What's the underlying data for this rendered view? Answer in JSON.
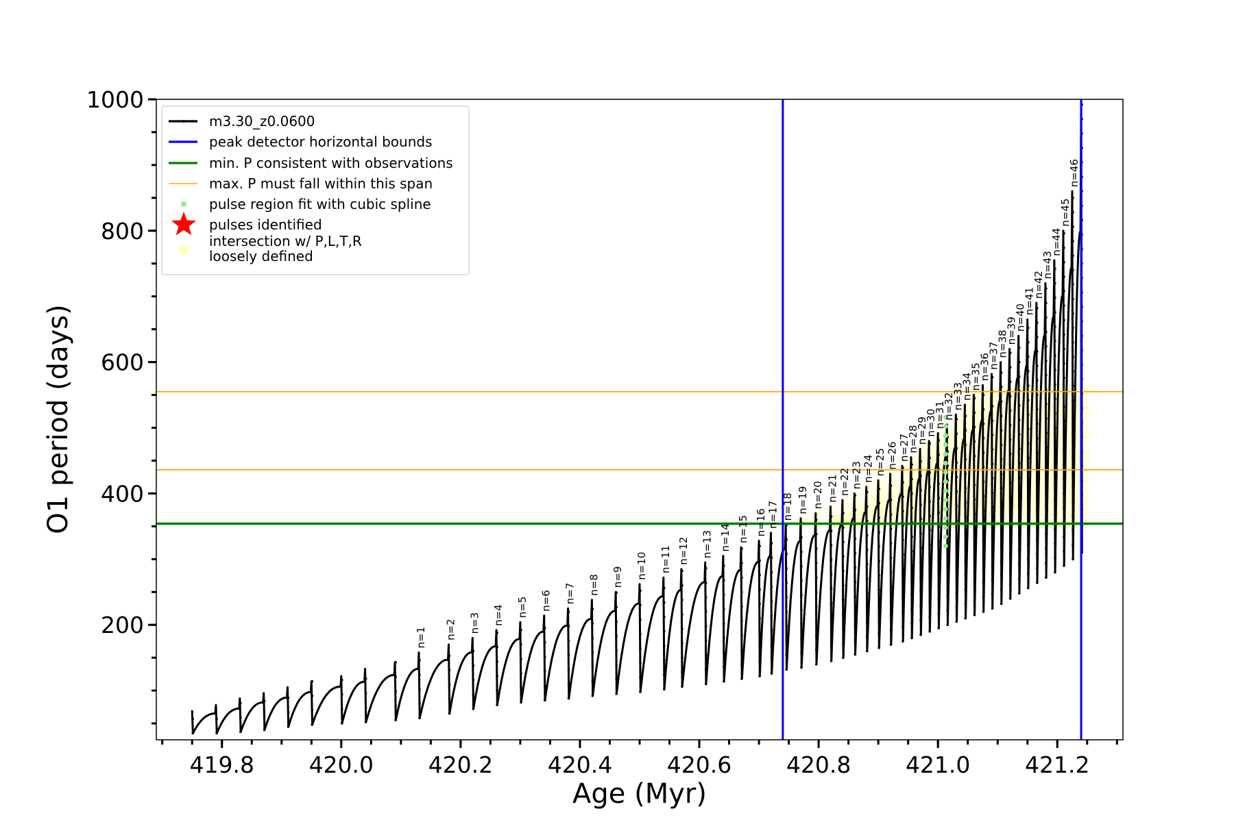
{
  "chart_data": {
    "type": "line",
    "title": "",
    "xlabel": "Age (Myr)",
    "ylabel": "O1 period (days)",
    "xlim": [
      419.69,
      421.31
    ],
    "ylim": [
      25,
      1000
    ],
    "xticks": [
      419.8,
      420.0,
      420.2,
      420.4,
      420.6,
      420.8,
      421.0,
      421.2
    ],
    "xtick_labels": [
      "419.8",
      "420.0",
      "420.2",
      "420.4",
      "420.6",
      "420.8",
      "421.0",
      "421.2"
    ],
    "yticks": [
      200,
      400,
      600,
      800,
      1000
    ],
    "ytick_labels": [
      "200",
      "400",
      "600",
      "800",
      "1000"
    ],
    "grid": false,
    "legend_position": "top-left",
    "legend": [
      {
        "label": "m3.30_z0.0600",
        "style": "line-dot",
        "color": "#000000"
      },
      {
        "label": "peak detector horizontal bounds",
        "style": "line",
        "color": "#0000ff"
      },
      {
        "label": "min. P consistent with observations",
        "style": "line",
        "color": "#008000"
      },
      {
        "label": "max. P must fall within this span",
        "style": "line",
        "color": "#ffa500"
      },
      {
        "label": "pulse region fit with cubic spline",
        "style": "dot",
        "color": "#90ee90"
      },
      {
        "label": "pulses identified",
        "style": "star",
        "color": "#ff0000"
      },
      {
        "label": "intersection w/ P,L,T,R",
        "label2": "loosely defined",
        "style": "circle",
        "color": "#ffffc0"
      }
    ],
    "vertical_lines": [
      {
        "x": 420.74,
        "color": "#0000ff"
      },
      {
        "x": 421.24,
        "color": "#0000ff"
      }
    ],
    "horizontal_lines": [
      {
        "y": 354,
        "color": "#008000"
      },
      {
        "y": 436,
        "color": "#ffa500"
      },
      {
        "y": 555,
        "color": "#ffa500"
      }
    ],
    "series": [
      {
        "name": "m3.30_z0.0600",
        "color": "#000000",
        "x_start": 419.75,
        "x_end": 421.25,
        "pulses": [
          {
            "x": 419.75,
            "min": 35,
            "max": 70,
            "label": ""
          },
          {
            "x": 419.79,
            "min": 35,
            "max": 78,
            "label": ""
          },
          {
            "x": 419.83,
            "min": 37,
            "max": 88,
            "label": ""
          },
          {
            "x": 419.87,
            "min": 40,
            "max": 96,
            "label": ""
          },
          {
            "x": 419.91,
            "min": 45,
            "max": 105,
            "label": ""
          },
          {
            "x": 419.95,
            "min": 48,
            "max": 114,
            "label": ""
          },
          {
            "x": 420.0,
            "min": 50,
            "max": 122,
            "label": ""
          },
          {
            "x": 420.04,
            "min": 52,
            "max": 133,
            "label": ""
          },
          {
            "x": 420.09,
            "min": 55,
            "max": 143,
            "label": ""
          },
          {
            "x": 420.13,
            "min": 58,
            "max": 158,
            "label": "n=1"
          },
          {
            "x": 420.18,
            "min": 65,
            "max": 170,
            "label": "n=2"
          },
          {
            "x": 420.22,
            "min": 72,
            "max": 180,
            "label": "n=3"
          },
          {
            "x": 420.26,
            "min": 78,
            "max": 192,
            "label": "n=4"
          },
          {
            "x": 420.3,
            "min": 82,
            "max": 204,
            "label": "n=5"
          },
          {
            "x": 420.34,
            "min": 85,
            "max": 214,
            "label": "n=6"
          },
          {
            "x": 420.38,
            "min": 88,
            "max": 225,
            "label": "n=7"
          },
          {
            "x": 420.42,
            "min": 92,
            "max": 238,
            "label": "n=8"
          },
          {
            "x": 420.46,
            "min": 95,
            "max": 250,
            "label": "n=9"
          },
          {
            "x": 420.5,
            "min": 98,
            "max": 262,
            "label": "n=10"
          },
          {
            "x": 420.54,
            "min": 102,
            "max": 272,
            "label": "n=11"
          },
          {
            "x": 420.57,
            "min": 106,
            "max": 285,
            "label": "n=12"
          },
          {
            "x": 420.61,
            "min": 110,
            "max": 295,
            "label": "n=13"
          },
          {
            "x": 420.64,
            "min": 114,
            "max": 305,
            "label": "n=14"
          },
          {
            "x": 420.67,
            "min": 118,
            "max": 318,
            "label": "n=15"
          },
          {
            "x": 420.7,
            "min": 122,
            "max": 328,
            "label": "n=16"
          },
          {
            "x": 420.72,
            "min": 126,
            "max": 340,
            "label": "n=17"
          },
          {
            "x": 420.745,
            "min": 132,
            "max": 352,
            "label": "n=18"
          },
          {
            "x": 420.77,
            "min": 135,
            "max": 362,
            "label": "n=19"
          },
          {
            "x": 420.795,
            "min": 140,
            "max": 370,
            "label": "n=20"
          },
          {
            "x": 420.82,
            "min": 145,
            "max": 380,
            "label": "n=21"
          },
          {
            "x": 420.84,
            "min": 150,
            "max": 390,
            "label": "n=22"
          },
          {
            "x": 420.86,
            "min": 155,
            "max": 400,
            "label": "n=23"
          },
          {
            "x": 420.88,
            "min": 160,
            "max": 410,
            "label": "n=24"
          },
          {
            "x": 420.9,
            "min": 165,
            "max": 420,
            "label": "n=25"
          },
          {
            "x": 420.92,
            "min": 170,
            "max": 430,
            "label": "n=26"
          },
          {
            "x": 420.94,
            "min": 175,
            "max": 442,
            "label": "n=27"
          },
          {
            "x": 420.955,
            "min": 180,
            "max": 455,
            "label": "n=28"
          },
          {
            "x": 420.97,
            "min": 185,
            "max": 468,
            "label": "n=29"
          },
          {
            "x": 420.985,
            "min": 190,
            "max": 480,
            "label": "n=30"
          },
          {
            "x": 421.0,
            "min": 195,
            "max": 492,
            "label": "n=31"
          },
          {
            "x": 421.015,
            "min": 200,
            "max": 505,
            "label": "n=32"
          },
          {
            "x": 421.03,
            "min": 205,
            "max": 520,
            "label": "n=33"
          },
          {
            "x": 421.045,
            "min": 210,
            "max": 535,
            "label": "n=34"
          },
          {
            "x": 421.06,
            "min": 215,
            "max": 550,
            "label": "n=35"
          },
          {
            "x": 421.075,
            "min": 220,
            "max": 565,
            "label": "n=36"
          },
          {
            "x": 421.09,
            "min": 225,
            "max": 582,
            "label": "n=37"
          },
          {
            "x": 421.105,
            "min": 232,
            "max": 600,
            "label": "n=38"
          },
          {
            "x": 421.12,
            "min": 240,
            "max": 620,
            "label": "n=39"
          },
          {
            "x": 421.135,
            "min": 248,
            "max": 640,
            "label": "n=40"
          },
          {
            "x": 421.15,
            "min": 256,
            "max": 665,
            "label": "n=41"
          },
          {
            "x": 421.165,
            "min": 264,
            "max": 690,
            "label": "n=42"
          },
          {
            "x": 421.18,
            "min": 272,
            "max": 720,
            "label": "n=43"
          },
          {
            "x": 421.195,
            "min": 280,
            "max": 755,
            "label": "n=44"
          },
          {
            "x": 421.21,
            "min": 290,
            "max": 800,
            "label": "n=45"
          },
          {
            "x": 421.225,
            "min": 300,
            "max": 860,
            "label": "n=46"
          },
          {
            "x": 421.24,
            "min": 310,
            "max": 1000,
            "label": ""
          }
        ]
      }
    ]
  }
}
